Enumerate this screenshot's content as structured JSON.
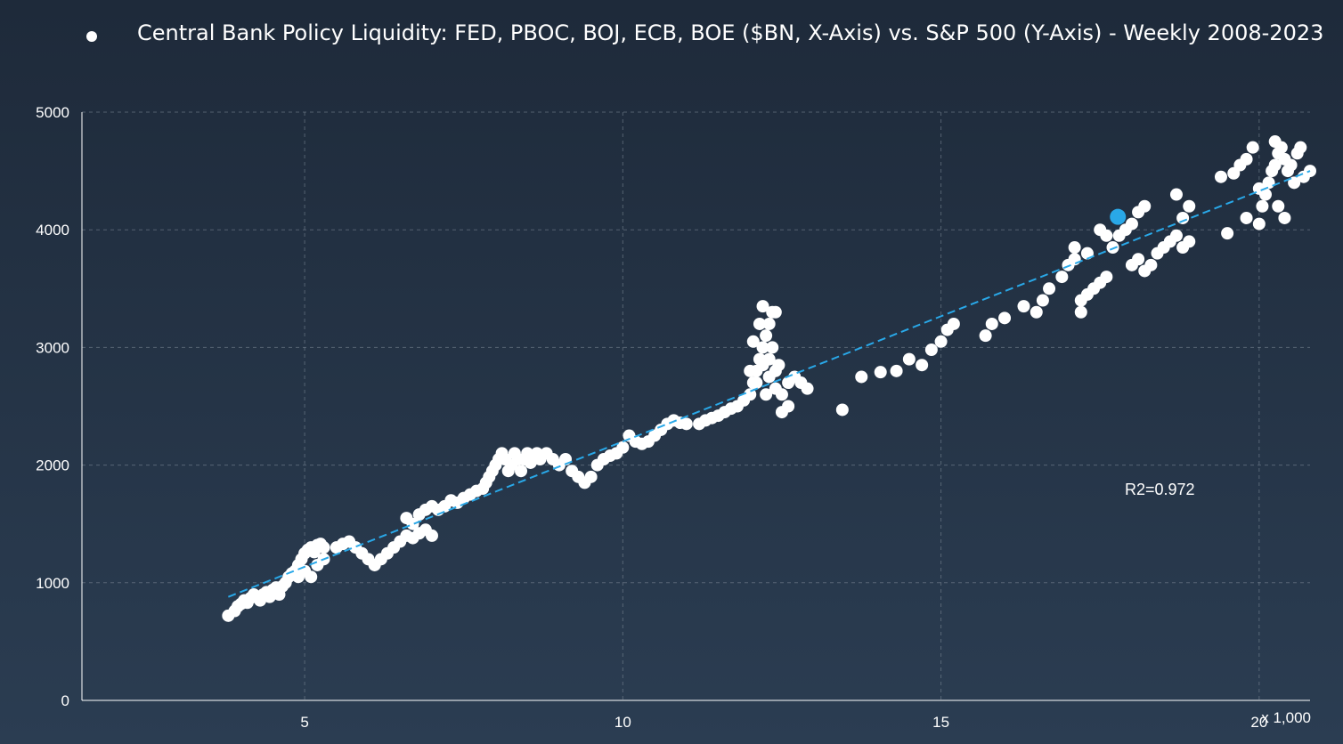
{
  "chart_data": {
    "type": "scatter",
    "title": "Central Bank Policy Liquidity: FED, PBOC, BOJ, ECB, BOE ($BN, X-Axis) vs. S&P 500 (Y-Axis) - Weekly 2008-2023",
    "x_unit_label": "x 1,000",
    "xlim": [
      1500,
      20800
    ],
    "ylim": [
      0,
      5000
    ],
    "x_ticks": [
      5000,
      10000,
      15000,
      20000
    ],
    "x_tick_labels": [
      "5",
      "10",
      "15",
      "20"
    ],
    "y_ticks": [
      0,
      1000,
      2000,
      3000,
      4000,
      5000
    ],
    "y_tick_labels": [
      "0",
      "1000",
      "2000",
      "3000",
      "4000",
      "5000"
    ],
    "grid": true,
    "legend_placement": "top-left",
    "annotation": "R2=0.972",
    "colors": {
      "points": "#ffffff",
      "highlight": "#29a8e8",
      "trend": "#29a8e8"
    },
    "trendline": {
      "x": [
        3800,
        20800
      ],
      "y": [
        880,
        4500
      ]
    },
    "highlight_point": {
      "x": 17780,
      "y": 4110
    },
    "series": [
      {
        "points": [
          [
            3800,
            720
          ],
          [
            3900,
            760
          ],
          [
            3950,
            800
          ],
          [
            4000,
            820
          ],
          [
            4050,
            850
          ],
          [
            4100,
            830
          ],
          [
            4150,
            870
          ],
          [
            4200,
            900
          ],
          [
            4250,
            880
          ],
          [
            4300,
            850
          ],
          [
            4350,
            900
          ],
          [
            4400,
            920
          ],
          [
            4450,
            880
          ],
          [
            4500,
            940
          ],
          [
            4550,
            960
          ],
          [
            4600,
            900
          ],
          [
            4650,
            970
          ],
          [
            4700,
            1000
          ],
          [
            4750,
            1050
          ],
          [
            4800,
            1080
          ],
          [
            4850,
            1100
          ],
          [
            4900,
            1150
          ],
          [
            4950,
            1200
          ],
          [
            5000,
            1250
          ],
          [
            5050,
            1280
          ],
          [
            5100,
            1300
          ],
          [
            5150,
            1260
          ],
          [
            5200,
            1320
          ],
          [
            5250,
            1330
          ],
          [
            5300,
            1300
          ],
          [
            4900,
            1050
          ],
          [
            5000,
            1100
          ],
          [
            5100,
            1050
          ],
          [
            5200,
            1150
          ],
          [
            5300,
            1200
          ],
          [
            5500,
            1300
          ],
          [
            5600,
            1330
          ],
          [
            5700,
            1350
          ],
          [
            5800,
            1300
          ],
          [
            5900,
            1250
          ],
          [
            6000,
            1200
          ],
          [
            6100,
            1150
          ],
          [
            6200,
            1200
          ],
          [
            6300,
            1250
          ],
          [
            6400,
            1300
          ],
          [
            6500,
            1350
          ],
          [
            6600,
            1400
          ],
          [
            6700,
            1380
          ],
          [
            6800,
            1420
          ],
          [
            6900,
            1450
          ],
          [
            7000,
            1400
          ],
          [
            6600,
            1550
          ],
          [
            6700,
            1500
          ],
          [
            6800,
            1580
          ],
          [
            6900,
            1620
          ],
          [
            7000,
            1650
          ],
          [
            7100,
            1620
          ],
          [
            7200,
            1650
          ],
          [
            7300,
            1700
          ],
          [
            7400,
            1680
          ],
          [
            7500,
            1720
          ],
          [
            7600,
            1750
          ],
          [
            7700,
            1780
          ],
          [
            7800,
            1800
          ],
          [
            7850,
            1850
          ],
          [
            7900,
            1900
          ],
          [
            7950,
            1950
          ],
          [
            8000,
            2000
          ],
          [
            8050,
            2050
          ],
          [
            8100,
            2100
          ],
          [
            8150,
            2050
          ],
          [
            8200,
            1950
          ],
          [
            8250,
            2000
          ],
          [
            8300,
            2100
          ],
          [
            8350,
            2050
          ],
          [
            8400,
            1950
          ],
          [
            8450,
            2050
          ],
          [
            8500,
            2100
          ],
          [
            8550,
            2020
          ],
          [
            8600,
            2080
          ],
          [
            8650,
            2100
          ],
          [
            8700,
            2050
          ],
          [
            8800,
            2100
          ],
          [
            8900,
            2050
          ],
          [
            9000,
            2000
          ],
          [
            9100,
            2050
          ],
          [
            9200,
            1950
          ],
          [
            9300,
            1900
          ],
          [
            9400,
            1850
          ],
          [
            9500,
            1900
          ],
          [
            9600,
            2000
          ],
          [
            9700,
            2050
          ],
          [
            9800,
            2080
          ],
          [
            9900,
            2100
          ],
          [
            10000,
            2150
          ],
          [
            10100,
            2250
          ],
          [
            10200,
            2200
          ],
          [
            10300,
            2180
          ],
          [
            10400,
            2200
          ],
          [
            10500,
            2250
          ],
          [
            10600,
            2300
          ],
          [
            10700,
            2350
          ],
          [
            10800,
            2380
          ],
          [
            10900,
            2360
          ],
          [
            11000,
            2350
          ],
          [
            11200,
            2350
          ],
          [
            11300,
            2380
          ],
          [
            11400,
            2400
          ],
          [
            11500,
            2420
          ],
          [
            11600,
            2450
          ],
          [
            11700,
            2480
          ],
          [
            11800,
            2500
          ],
          [
            11900,
            2550
          ],
          [
            12000,
            2600
          ],
          [
            12050,
            2700
          ],
          [
            12100,
            2800
          ],
          [
            12150,
            2900
          ],
          [
            12200,
            3000
          ],
          [
            12250,
            3100
          ],
          [
            12300,
            3200
          ],
          [
            12350,
            3300
          ],
          [
            12400,
            3300
          ],
          [
            12200,
            3350
          ],
          [
            12000,
            2800
          ],
          [
            12100,
            2700
          ],
          [
            12300,
            2750
          ],
          [
            12400,
            2650
          ],
          [
            12500,
            2600
          ],
          [
            12600,
            2700
          ],
          [
            12700,
            2750
          ],
          [
            12800,
            2700
          ],
          [
            12900,
            2650
          ],
          [
            12600,
            2500
          ],
          [
            12500,
            2450
          ],
          [
            12400,
            2800
          ],
          [
            12300,
            2900
          ],
          [
            12200,
            2850
          ],
          [
            12350,
            3000
          ],
          [
            12050,
            3050
          ],
          [
            12150,
            3200
          ],
          [
            12250,
            2600
          ],
          [
            12450,
            2850
          ],
          [
            13450,
            2470
          ],
          [
            13750,
            2750
          ],
          [
            14050,
            2790
          ],
          [
            14300,
            2800
          ],
          [
            14500,
            2900
          ],
          [
            14700,
            2850
          ],
          [
            14850,
            2980
          ],
          [
            15000,
            3050
          ],
          [
            15100,
            3150
          ],
          [
            15200,
            3200
          ],
          [
            15700,
            3100
          ],
          [
            15800,
            3200
          ],
          [
            16000,
            3250
          ],
          [
            16300,
            3350
          ],
          [
            16500,
            3300
          ],
          [
            16600,
            3400
          ],
          [
            16700,
            3500
          ],
          [
            16900,
            3600
          ],
          [
            17000,
            3700
          ],
          [
            17100,
            3750
          ],
          [
            17200,
            3400
          ],
          [
            17300,
            3450
          ],
          [
            17400,
            3500
          ],
          [
            17500,
            3550
          ],
          [
            17600,
            3600
          ],
          [
            17700,
            3850
          ],
          [
            17800,
            3950
          ],
          [
            17900,
            4000
          ],
          [
            18000,
            4050
          ],
          [
            18100,
            4150
          ],
          [
            18200,
            4200
          ],
          [
            17500,
            4000
          ],
          [
            17600,
            3950
          ],
          [
            17300,
            3800
          ],
          [
            17100,
            3850
          ],
          [
            17200,
            3300
          ],
          [
            18000,
            3700
          ],
          [
            18100,
            3750
          ],
          [
            18200,
            3650
          ],
          [
            18300,
            3700
          ],
          [
            18400,
            3800
          ],
          [
            18500,
            3850
          ],
          [
            18600,
            3900
          ],
          [
            18700,
            3950
          ],
          [
            18800,
            4100
          ],
          [
            18900,
            4200
          ],
          [
            18700,
            4300
          ],
          [
            18800,
            3850
          ],
          [
            18900,
            3900
          ],
          [
            19400,
            4450
          ],
          [
            19600,
            4480
          ],
          [
            19700,
            4550
          ],
          [
            19800,
            4600
          ],
          [
            19900,
            4700
          ],
          [
            20000,
            4350
          ],
          [
            20050,
            4200
          ],
          [
            20100,
            4300
          ],
          [
            20150,
            4400
          ],
          [
            20200,
            4500
          ],
          [
            20250,
            4550
          ],
          [
            20300,
            4650
          ],
          [
            20350,
            4700
          ],
          [
            20400,
            4600
          ],
          [
            20450,
            4500
          ],
          [
            20500,
            4550
          ],
          [
            20550,
            4400
          ],
          [
            20600,
            4650
          ],
          [
            20650,
            4700
          ],
          [
            20700,
            4450
          ],
          [
            20800,
            4500
          ],
          [
            19500,
            3970
          ],
          [
            19800,
            4100
          ],
          [
            20000,
            4050
          ],
          [
            20300,
            4200
          ],
          [
            20400,
            4100
          ],
          [
            20250,
            4750
          ]
        ]
      }
    ]
  }
}
